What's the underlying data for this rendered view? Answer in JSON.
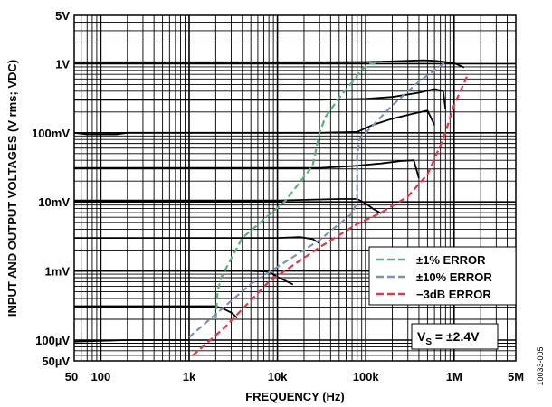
{
  "chart_data": {
    "type": "line",
    "xlabel": "FREQUENCY (Hz)",
    "ylabel": "INPUT AND OUTPUT VOLTAGES (V rms; VDC)",
    "x_scale": "log",
    "y_scale": "log",
    "xlim": [
      50,
      5000000
    ],
    "ylim": [
      5e-05,
      5
    ],
    "grid": true,
    "x_ticks": [
      {
        "value": 50,
        "label": "50"
      },
      {
        "value": 100,
        "label": "100"
      },
      {
        "value": 1000,
        "label": "1k"
      },
      {
        "value": 10000,
        "label": "10k"
      },
      {
        "value": 100000,
        "label": "100k"
      },
      {
        "value": 1000000,
        "label": "1M"
      },
      {
        "value": 5000000,
        "label": "5M"
      }
    ],
    "y_ticks": [
      {
        "value": 5,
        "label": "5V"
      },
      {
        "value": 1,
        "label": "1V"
      },
      {
        "value": 0.1,
        "label": "100mV"
      },
      {
        "value": 0.01,
        "label": "10mV"
      },
      {
        "value": 0.001,
        "label": "1mV"
      },
      {
        "value": 0.0001,
        "label": "100µV"
      },
      {
        "value": 5e-05,
        "label": "50µV"
      }
    ],
    "legend": {
      "placement": "lower-right",
      "entries": [
        {
          "label": "±1% ERROR",
          "color": "#5aaf82"
        },
        {
          "label": "±10% ERROR",
          "color": "#7f92b4"
        },
        {
          "label": "−3dB ERROR",
          "color": "#e8334a"
        }
      ]
    },
    "annotation": {
      "text": "V",
      "sub": "S",
      "rest": " = ±2.4V"
    },
    "figure_id": "10033-005",
    "series_color": "#000000",
    "series": [
      {
        "x": [
          50,
          30000,
          100000,
          200000,
          450000,
          600000,
          1000000,
          1300000
        ],
        "y": [
          1.05,
          1.05,
          1.06,
          1.08,
          1.12,
          1.1,
          1.02,
          0.88
        ]
      },
      {
        "x": [
          50,
          30000,
          100000,
          200000,
          400000,
          600000,
          750000,
          800000
        ],
        "y": [
          0.3,
          0.3,
          0.31,
          0.33,
          0.38,
          0.43,
          0.4,
          0.22
        ]
      },
      {
        "x": [
          50,
          70,
          150,
          200,
          30000,
          80000,
          120000,
          200000,
          350000,
          500000,
          600000
        ],
        "y": [
          0.1,
          0.095,
          0.095,
          0.1,
          0.1,
          0.103,
          0.13,
          0.16,
          0.19,
          0.21,
          0.13
        ]
      },
      {
        "x": [
          50,
          30000,
          70000,
          150000,
          250000,
          350000,
          400000
        ],
        "y": [
          0.031,
          0.031,
          0.033,
          0.036,
          0.039,
          0.04,
          0.022
        ]
      },
      {
        "x": [
          50,
          10000,
          50000,
          80000,
          100000,
          120000,
          150000
        ],
        "y": [
          0.0105,
          0.0105,
          0.011,
          0.011,
          0.0095,
          0.008,
          0.0068
        ]
      },
      {
        "x": [
          50,
          10000,
          18000,
          25000,
          30000
        ],
        "y": [
          0.003,
          0.003,
          0.0031,
          0.0029,
          0.0025
        ]
      },
      {
        "x": [
          50,
          5000,
          8000,
          10000,
          15000
        ],
        "y": [
          0.001,
          0.001,
          0.00098,
          0.00082,
          0.00064
        ]
      },
      {
        "x": [
          50,
          2000,
          2500,
          3000,
          3500
        ],
        "y": [
          0.00031,
          0.00031,
          0.00028,
          0.00025,
          0.00021
        ]
      },
      {
        "x": [
          50,
          200,
          1000
        ],
        "y": [
          9.5e-05,
          0.0001,
          0.0001
        ]
      }
    ],
    "error_curves": [
      {
        "name": "±1% ERROR",
        "color": "#5aaf82",
        "x": [
          2000,
          2100,
          2300,
          4000,
          12000,
          25000,
          30000,
          35000,
          50000,
          75000,
          90000,
          110000,
          150000
        ],
        "y": [
          0.0002,
          0.0005,
          0.0008,
          0.003,
          0.01,
          0.033,
          0.1,
          0.17,
          0.32,
          0.6,
          0.82,
          1.0,
          1.05
        ]
      },
      {
        "name": "±10% ERROR",
        "color": "#7f92b4",
        "x": [
          1000,
          5000,
          30000,
          70000,
          80000,
          80000,
          85000,
          100000,
          200000,
          400000,
          800000
        ],
        "y": [
          0.00011,
          0.00065,
          0.0028,
          0.0068,
          0.01,
          0.045,
          0.08,
          0.1,
          0.25,
          0.55,
          1.05
        ]
      },
      {
        "name": "−3dB ERROR",
        "color": "#e8334a",
        "x": [
          1100,
          2500,
          8000,
          30000,
          80000,
          150000,
          300000,
          500000,
          750000,
          1000000,
          1400000
        ],
        "y": [
          6e-05,
          0.00015,
          0.0007,
          0.0022,
          0.0048,
          0.007,
          0.012,
          0.025,
          0.08,
          0.25,
          0.65
        ]
      }
    ]
  }
}
